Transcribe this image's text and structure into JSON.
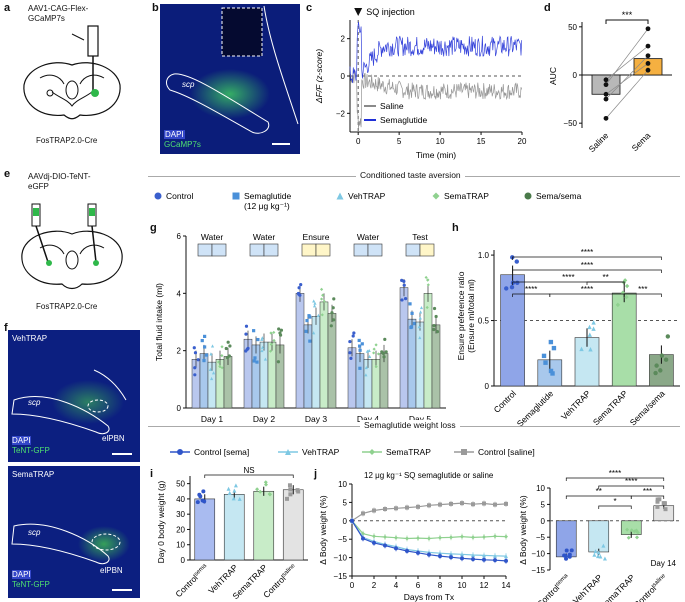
{
  "panels": {
    "a": {
      "label": "a",
      "virus": "AAV1-CAG-Flex-\nGCaMP7s",
      "mouse": "FosTRAP2.0-Cre"
    },
    "b": {
      "label": "b",
      "region": "scp",
      "legend": [
        "DAPI",
        "GCaMP7s"
      ]
    },
    "c": {
      "label": "c",
      "injection": "SQ injection",
      "ylabel": "ΔF/F (z-score)",
      "xlabel": "Time (min)",
      "legend": [
        "Saline",
        "Semaglutide"
      ],
      "xticks": [
        "0",
        "5",
        "10",
        "15",
        "20"
      ],
      "yticks": [
        "−2",
        "0",
        "2"
      ]
    },
    "d": {
      "label": "d",
      "ylabel": "AUC",
      "sig": "***",
      "xcats": [
        "Saline",
        "Sema"
      ],
      "yticks": [
        "−50",
        "0",
        "50"
      ]
    },
    "e": {
      "label": "e",
      "virus": "AAVdj-DIO-TeNT-\neGFP",
      "mouse": "FosTRAP2.0-Cre"
    },
    "f": {
      "label": "f",
      "top_title": "VehTRAP",
      "bottom_title": "SemaTRAP",
      "region_scp": "scp",
      "region_elpbn": "elPBN",
      "legend": [
        "DAPI",
        "TeNT-GFP"
      ]
    },
    "cta_title": "Conditioned taste aversion",
    "cta_legend": [
      {
        "name": "Control",
        "color": "#3a5fcd",
        "shape": "circle"
      },
      {
        "name": "Semaglutide\n(12 μg kg⁻¹)",
        "color": "#4a90d9",
        "shape": "square"
      },
      {
        "name": "VehTRAP",
        "color": "#7ec8e3",
        "shape": "triangle"
      },
      {
        "name": "SemaTRAP",
        "color": "#8fd18f",
        "shape": "diamond"
      },
      {
        "name": "Sema/sema",
        "color": "#4a7a4a",
        "shape": "circle"
      }
    ],
    "g": {
      "label": "g",
      "ylabel": "Total fluid intake (ml)",
      "yticks": [
        "0",
        "2",
        "4",
        "6"
      ],
      "days": [
        "Day 1",
        "Day 2",
        "Day 3",
        "Day 4",
        "Day 5"
      ],
      "solutions": [
        "Water",
        "Water",
        "Ensure",
        "Water",
        "Test"
      ]
    },
    "h": {
      "label": "h",
      "ylabel": "Ensure preference ratio\n(Ensure ml/total ml)",
      "yticks": [
        "0",
        "0.5",
        "1.0"
      ],
      "xcats": [
        "Control",
        "Semaglutide",
        "VehTRAP",
        "SemaTRAP",
        "Sema/sema"
      ],
      "sig": [
        "****",
        "****",
        "**",
        "****",
        "****",
        "***"
      ]
    },
    "weight_title": "Semaglutide weight loss",
    "weight_legend": [
      {
        "name": "Control [sema]",
        "color": "#2f55c9"
      },
      {
        "name": "VehTRAP",
        "color": "#7ec8e3"
      },
      {
        "name": "SemaTRAP",
        "color": "#8fd18f"
      },
      {
        "name": "Control [saline]",
        "color": "#9a9a9a"
      }
    ],
    "i": {
      "label": "i",
      "ylabel": "Day 0 body weight (g)",
      "yticks": [
        "0",
        "10",
        "20",
        "30",
        "40",
        "50"
      ],
      "xcats": [
        "Control",
        "VehTRAP",
        "SemaTRAP",
        "Control"
      ],
      "sups": [
        "sema",
        "",
        "",
        "saline"
      ],
      "sig": "NS"
    },
    "j": {
      "label": "j",
      "title": "12 μg kg⁻¹ SQ semaglutide or saline",
      "ylabel": "Δ Body weight (%)",
      "xlabel": "Days from Tx",
      "xticks": [
        "0",
        "2",
        "4",
        "6",
        "8",
        "10",
        "12",
        "14"
      ],
      "yticks": [
        "−15",
        "−10",
        "−5",
        "0",
        "5",
        "10"
      ]
    },
    "k": {
      "ylabel": "Δ Body weight (%)",
      "yticks": [
        "−15",
        "−10",
        "−5",
        "0",
        "5",
        "10"
      ],
      "day": "Day 14",
      "xcats": [
        "Control",
        "VehTRAP",
        "SemaTRAP",
        "Control"
      ],
      "sups": [
        "sema",
        "",
        "",
        "saline"
      ],
      "sig": [
        "****",
        "****",
        "**",
        "***",
        "*"
      ]
    }
  },
  "chart_data": [
    {
      "type": "line",
      "panel": "c",
      "x_unit": "min",
      "series": [
        {
          "name": "Saline",
          "level": -0.8
        },
        {
          "name": "Semaglutide",
          "level": 1.6
        }
      ],
      "xlim": [
        -1,
        20
      ],
      "ylim": [
        -3,
        3
      ]
    },
    {
      "type": "bar",
      "panel": "d",
      "categories": [
        "Saline",
        "Sema"
      ],
      "values": [
        -20,
        17
      ],
      "ylim": [
        -55,
        55
      ]
    },
    {
      "type": "bar",
      "panel": "g",
      "categories": [
        "Day 1",
        "Day 2",
        "Day 3",
        "Day 4",
        "Day 5"
      ],
      "ylim": [
        0,
        6
      ],
      "series": [
        {
          "name": "Control",
          "values": [
            1.7,
            2.4,
            4.0,
            2.1,
            4.2
          ]
        },
        {
          "name": "Semaglutide",
          "values": [
            1.9,
            2.2,
            2.9,
            1.9,
            3.1
          ]
        },
        {
          "name": "VehTRAP",
          "values": [
            1.6,
            2.3,
            3.2,
            1.7,
            3.0
          ]
        },
        {
          "name": "SemaTRAP",
          "values": [
            1.7,
            2.3,
            3.7,
            1.7,
            4.0
          ]
        },
        {
          "name": "Sema/sema",
          "values": [
            1.8,
            2.2,
            3.3,
            1.9,
            2.9
          ]
        }
      ]
    },
    {
      "type": "bar",
      "panel": "h",
      "categories": [
        "Control",
        "Semaglutide",
        "VehTRAP",
        "SemaTRAP",
        "Sema/sema"
      ],
      "values": [
        0.85,
        0.2,
        0.37,
        0.71,
        0.24
      ],
      "ylim": [
        0,
        1.1
      ]
    },
    {
      "type": "bar",
      "panel": "i",
      "categories": [
        "Control sema",
        "VehTRAP",
        "SemaTRAP",
        "Control saline"
      ],
      "values": [
        40,
        43,
        45,
        46
      ],
      "ylim": [
        0,
        55
      ]
    },
    {
      "type": "line",
      "panel": "j",
      "x": [
        0,
        1,
        2,
        3,
        4,
        5,
        6,
        7,
        8,
        9,
        10,
        11,
        12,
        13,
        14
      ],
      "ylim": [
        -15,
        10
      ],
      "series": [
        {
          "name": "Control [saline]",
          "values": [
            0,
            2,
            2.8,
            3.2,
            3.4,
            3.6,
            3.8,
            4.2,
            4.4,
            4.6,
            4.8,
            4.5,
            4.7,
            4.4,
            4.6
          ]
        },
        {
          "name": "SemaTRAP",
          "values": [
            0,
            -3.5,
            -4.2,
            -4.4,
            -4.6,
            -4.8,
            -4.7,
            -4.8,
            -4.6,
            -4.5,
            -4.3,
            -4.5,
            -4.4,
            -4.2,
            -4.3
          ]
        },
        {
          "name": "VehTRAP",
          "values": [
            0,
            -4.5,
            -5.6,
            -6.4,
            -7,
            -7.8,
            -8.2,
            -8.6,
            -8.8,
            -9,
            -9.1,
            -9.3,
            -9.4,
            -9.5,
            -9.6
          ]
        },
        {
          "name": "Control [sema]",
          "values": [
            0,
            -4.8,
            -6,
            -6.7,
            -7.5,
            -8.2,
            -8.7,
            -9.2,
            -9.6,
            -9.9,
            -10.2,
            -10.4,
            -10.6,
            -10.7,
            -10.9
          ]
        }
      ]
    },
    {
      "type": "bar",
      "panel": "k",
      "categories": [
        "Control sema",
        "VehTRAP",
        "SemaTRAP",
        "Control saline"
      ],
      "values": [
        -11,
        -9.5,
        -4.2,
        4.6
      ],
      "ylim": [
        -15,
        10
      ]
    }
  ]
}
